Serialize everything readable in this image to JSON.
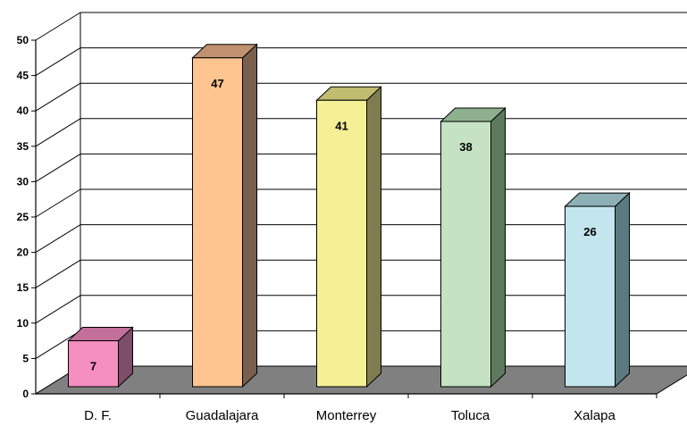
{
  "chart_data": {
    "type": "bar",
    "style": "3d-column",
    "categories": [
      "D. F.",
      "Guadalajara",
      "Monterrey",
      "Toluca",
      "Xalapa"
    ],
    "values": [
      7,
      47,
      41,
      38,
      26
    ],
    "data_labels": [
      "7",
      "47",
      "41",
      "38",
      "26"
    ],
    "ylim": [
      0,
      50
    ],
    "yticks": [
      "0",
      "5",
      "10",
      "15",
      "20",
      "25",
      "30",
      "35",
      "40",
      "45",
      "50"
    ],
    "grid": true,
    "legend": "none",
    "title": "",
    "xlabel": "",
    "ylabel": "",
    "colors": {
      "front": [
        "#F48FC0",
        "#FFC591",
        "#F5F096",
        "#C5E2C2",
        "#C3E6EE"
      ],
      "side": [
        "#7D4D69",
        "#7A5F4F",
        "#7F7D4F",
        "#5E7A5E",
        "#5B7A80"
      ],
      "top": [
        "#C27099",
        "#C09070",
        "#C0BC70",
        "#8EB08E",
        "#8CB0B6"
      ],
      "floor": "#808080",
      "grid": "#000000"
    }
  }
}
